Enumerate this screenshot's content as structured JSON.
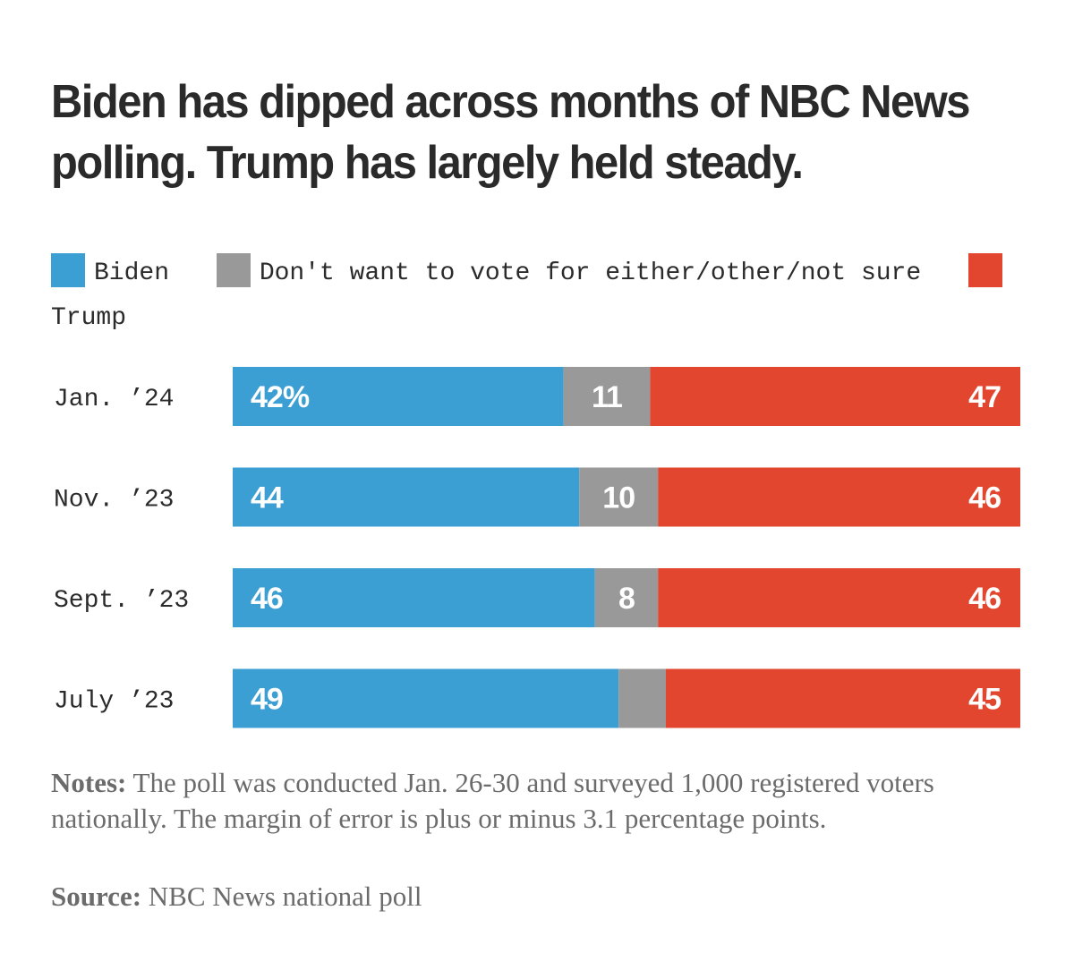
{
  "chart_data": {
    "type": "bar",
    "stacked": true,
    "orientation": "horizontal",
    "title": "Biden has dipped across months of NBC News polling. Trump has largely held steady.",
    "categories": [
      "Jan. ’24",
      "Nov. ’23",
      "Sept. ’23",
      "July ’23"
    ],
    "series": [
      {
        "name": "Biden",
        "color": "#3c9fd4",
        "values": [
          42,
          44,
          46,
          49
        ],
        "labels": [
          "42%",
          "44",
          "46",
          "49"
        ]
      },
      {
        "name": "Don't want to vote for either/other/not sure",
        "color": "#999999",
        "values": [
          11,
          10,
          8,
          6
        ],
        "labels": [
          "11",
          "10",
          "8",
          ""
        ]
      },
      {
        "name": "Trump",
        "color": "#e2462e",
        "values": [
          47,
          46,
          46,
          45
        ],
        "labels": [
          "47",
          "46",
          "46",
          "45"
        ]
      }
    ],
    "xlim": [
      0,
      100
    ]
  },
  "legend": {
    "biden": "Biden",
    "neither": "Don't want to vote for either/other/not sure",
    "trump": "Trump"
  },
  "notes": {
    "label": "Notes:",
    "text": " The poll was conducted Jan. 26-30 and surveyed 1,000 registered voters nationally. The margin of error is plus or minus 3.1 percentage points."
  },
  "source": {
    "label": "Source:",
    "text": " NBC News national poll"
  }
}
